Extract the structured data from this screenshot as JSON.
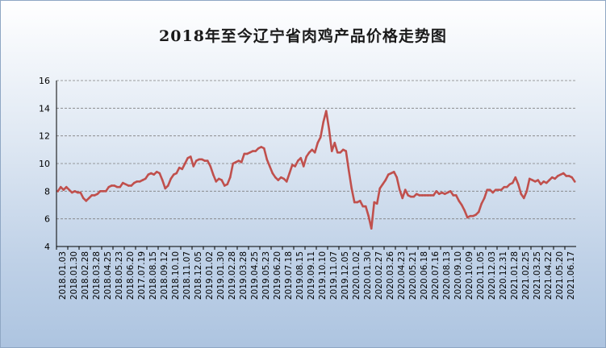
{
  "chart_data": {
    "type": "line",
    "title": "2018年至今辽宁省肉鸡产品价格走势图",
    "xlabel": "",
    "ylabel": "",
    "ylim": [
      4,
      16
    ],
    "yticks": [
      4,
      6,
      8,
      10,
      12,
      14,
      16
    ],
    "grid": true,
    "legend": "none",
    "colors": {
      "line": "#c0504d",
      "grid": "#7f7f7f",
      "axis": "#000000"
    },
    "x_tick_labels": [
      "2018.01.03",
      "2018.01.30",
      "2018.02.28",
      "2018.03.28",
      "2018.04.25",
      "2018.05.23",
      "2018.06.20",
      "2017.07.19",
      "2018.08.15",
      "2018.09.12",
      "2018.10.10",
      "2018.11.07",
      "2018.12.05",
      "2019.01.02",
      "2019.01.30",
      "2019.02.28",
      "2019.03.28",
      "2019.04.25",
      "2019.05.23",
      "2019.06.20",
      "2019.07.18",
      "2019.08.15",
      "2019.09.11",
      "2019.10.10",
      "2019.11.07",
      "2019.12.05",
      "2020.01.02",
      "2020.01.30",
      "2020.02.27",
      "2020.03.26",
      "2020.04.23",
      "2020.05.21",
      "2020.06.18",
      "2020.07.16",
      "2020.08.13",
      "2020.09.10",
      "2020.10.09",
      "2020.11.05",
      "2020.12.03",
      "2020.12.31",
      "2021.01.28",
      "2021.02.25",
      "2021.03.25",
      "2021.04.22",
      "2021.05.20",
      "2021.06.17"
    ],
    "series": [
      {
        "values": [
          8.0,
          8.3,
          8.1,
          8.3,
          8.1,
          7.9,
          8.0,
          7.9,
          7.9,
          7.5,
          7.3,
          7.5,
          7.7,
          7.7,
          7.8,
          8.0,
          8.0,
          8.0,
          8.3,
          8.4,
          8.4,
          8.3,
          8.3,
          8.6,
          8.5,
          8.4,
          8.4,
          8.6,
          8.7,
          8.7,
          8.8,
          8.9,
          9.2,
          9.3,
          9.2,
          9.4,
          9.3,
          8.8,
          8.2,
          8.4,
          8.9,
          9.2,
          9.3,
          9.7,
          9.6,
          10.0,
          10.4,
          10.5,
          9.8,
          10.2,
          10.3,
          10.3,
          10.2,
          10.2,
          9.8,
          9.2,
          8.7,
          8.9,
          8.8,
          8.4,
          8.5,
          9.0,
          10.0,
          10.1,
          10.2,
          10.1,
          10.7,
          10.7,
          10.8,
          10.9,
          10.9,
          11.1,
          11.2,
          11.1,
          10.3,
          9.8,
          9.3,
          9.0,
          8.8,
          9.0,
          8.9,
          8.7,
          9.3,
          9.9,
          9.8,
          10.2,
          10.4,
          9.8,
          10.5,
          10.8,
          11.0,
          10.8,
          11.5,
          11.9,
          13.0,
          13.8,
          12.5,
          10.9,
          11.5,
          10.8,
          10.8,
          11.0,
          10.9,
          9.5,
          8.2,
          7.2,
          7.2,
          7.3,
          6.9,
          6.9,
          6.2,
          5.3,
          7.2,
          7.1,
          8.2,
          8.5,
          8.8,
          9.2,
          9.3,
          9.4,
          9.0,
          8.1,
          7.5,
          8.1,
          7.7,
          7.6,
          7.6,
          7.8,
          7.7,
          7.7,
          7.7,
          7.7,
          7.7,
          7.7,
          8.0,
          7.8,
          7.9,
          7.8,
          7.9,
          8.0,
          7.7,
          7.7,
          7.3,
          7.0,
          6.6,
          6.1,
          6.2,
          6.2,
          6.3,
          6.5,
          7.1,
          7.5,
          8.1,
          8.1,
          7.9,
          8.1,
          8.1,
          8.1,
          8.3,
          8.3,
          8.5,
          8.6,
          9.0,
          8.5,
          7.8,
          7.5,
          8.0,
          8.9,
          8.8,
          8.7,
          8.8,
          8.5,
          8.7,
          8.6,
          8.8,
          9.0,
          8.9,
          9.1,
          9.2,
          9.3,
          9.1,
          9.1,
          9.0,
          8.7
        ]
      }
    ]
  }
}
